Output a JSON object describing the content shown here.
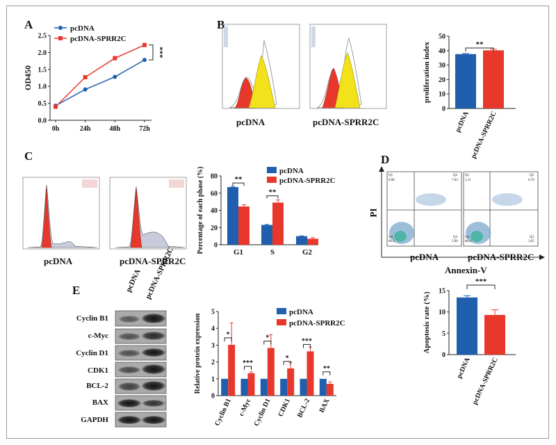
{
  "panels": {
    "a": "A",
    "b": "B",
    "c": "C",
    "d": "D",
    "e": "E"
  },
  "colors": {
    "pcdna": "#1f5fae",
    "sprr": "#e8382c",
    "yellow": "#f2e21b",
    "grey_fill": "#c7cbdc"
  },
  "groups": {
    "control": "pcDNA",
    "treated": "pcDNA-SPRR2C"
  },
  "panel_b": {
    "left_caption": "pcDNA",
    "right_caption": "pcDNA-SPRR2C"
  },
  "panel_c": {
    "left_caption": "pcDNA",
    "right_caption": "pcDNA-SPRR2C"
  },
  "panel_d": {
    "left_caption": "pcDNA",
    "right_caption": "pcDNA-SPRR2C",
    "y_axis": "PI",
    "x_axis": "Annexin-V",
    "quadrants_left": {
      "q1": "Q1",
      "q1v": "0.96",
      "q2": "Q2",
      "q2v": "7.03",
      "q3": "Q3",
      "q3v": "5.96",
      "q4": "Q4",
      "q4v": "86.1"
    },
    "quadrants_right": {
      "q1": "Q1",
      "q1v": "1.11",
      "q2": "Q2",
      "q2v": "6.76",
      "q3": "Q3",
      "q3v": "3.65",
      "q4": "Q4",
      "q4v": "88.4"
    }
  },
  "panel_e": {
    "lanes": [
      "pcDNA",
      "pcDNA-SPRR2C"
    ],
    "proteins": [
      "Cyclin B1",
      "c-Myc",
      "Cyclin D1",
      "CDK1",
      "BCL-2",
      "BAX",
      "GAPDH"
    ]
  },
  "chart_data": [
    {
      "id": "growth",
      "type": "line",
      "categories": [
        "0h",
        "24h",
        "48h",
        "72h"
      ],
      "series": [
        {
          "name": "pcDNA",
          "values": [
            0.43,
            0.91,
            1.28,
            1.78
          ]
        },
        {
          "name": "pcDNA-SPRR2C",
          "values": [
            0.4,
            1.27,
            1.83,
            2.22
          ]
        }
      ],
      "errors": [
        [
          0.02,
          0.03,
          0.03,
          0.03
        ],
        [
          0.02,
          0.04,
          0.05,
          0.04
        ]
      ],
      "ylabel": "OD450",
      "ylim": [
        0,
        2.5
      ],
      "yticks": [
        "0.0",
        "0.5",
        "1.0",
        "1.5",
        "2.0",
        "2.5"
      ],
      "significance": "***",
      "legend": "top-left"
    },
    {
      "id": "proliferation",
      "type": "bar",
      "categories": [
        "pcDNA",
        "pcDNA-SPRR2C"
      ],
      "values": [
        37.6,
        40.2
      ],
      "errors": [
        0.4,
        0.8
      ],
      "ylabel": "proliferation index",
      "ylim": [
        0,
        50
      ],
      "yticks": [
        "0",
        "10",
        "20",
        "30",
        "40",
        "50"
      ],
      "significance": "**"
    },
    {
      "id": "cell_cycle",
      "type": "bar",
      "categories": [
        "G1",
        "S",
        "G2"
      ],
      "series": [
        {
          "name": "pcDNA",
          "values": [
            67,
            23,
            10
          ]
        },
        {
          "name": "pcDNA-SPRR2C",
          "values": [
            44.5,
            49,
            7
          ]
        }
      ],
      "errors": [
        [
          0.8,
          0.6,
          0.4
        ],
        [
          2,
          3,
          1.2
        ]
      ],
      "ylabel": "Percentage of each phase (%)",
      "ylim": [
        0,
        80
      ],
      "yticks": [
        "0",
        "20",
        "40",
        "60",
        "80"
      ],
      "significance": [
        "**",
        "**",
        ""
      ],
      "legend": "top-right"
    },
    {
      "id": "apoptosis",
      "type": "bar",
      "categories": [
        "pcDNA",
        "pcDNA-SPRR2C"
      ],
      "values": [
        13.4,
        9.3
      ],
      "errors": [
        0.4,
        1.2
      ],
      "ylabel": "Apoptosis rate (%)",
      "ylim": [
        0,
        15
      ],
      "yticks": [
        "0",
        "5",
        "10",
        "15"
      ],
      "significance": "***"
    },
    {
      "id": "protein",
      "type": "bar",
      "categories": [
        "Cyclin B1",
        "c-Myc",
        "Cyclin D1",
        "CDK1",
        "BCL-2",
        "BAX"
      ],
      "series": [
        {
          "name": "pcDNA",
          "values": [
            1,
            1,
            1,
            1,
            1,
            1
          ]
        },
        {
          "name": "pcDNA-SPRR2C",
          "values": [
            3.02,
            1.33,
            2.83,
            1.62,
            2.63,
            0.7
          ]
        }
      ],
      "errors": [
        [
          0,
          0,
          0,
          0,
          0,
          0
        ],
        [
          1.3,
          0.08,
          0.8,
          0.35,
          0.25,
          0.12
        ]
      ],
      "ylabel": "Relative protein expression",
      "ylim": [
        0,
        5
      ],
      "yticks": [
        "0",
        "1",
        "2",
        "3",
        "4",
        "5"
      ],
      "significance": [
        "*",
        "***",
        "*",
        "*",
        "***",
        "**"
      ],
      "legend": "top-right"
    }
  ]
}
